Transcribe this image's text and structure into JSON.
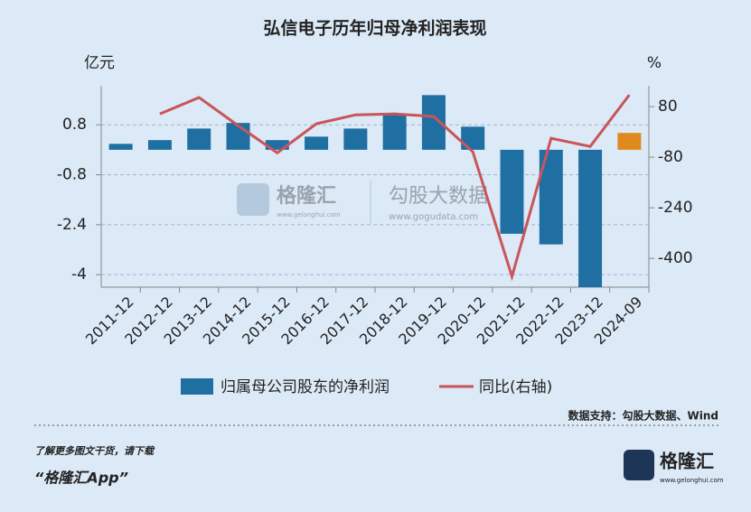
{
  "chart_data": {
    "type": "bar_line",
    "title": "弘信电子历年归母净利润表现",
    "ylabel": "亿元",
    "y2label": "%",
    "categories": [
      "2011-12",
      "2012-12",
      "2013-12",
      "2014-12",
      "2015-12",
      "2016-12",
      "2017-12",
      "2018-12",
      "2019-12",
      "2020-12",
      "2021-12",
      "2022-12",
      "2023-12",
      "2024-09"
    ],
    "series": [
      {
        "name": "归属母公司股东的净利润",
        "type": "bar",
        "color": "#1f6fa3",
        "colors": [
          "#1f6fa3",
          "#1f6fa3",
          "#1f6fa3",
          "#1f6fa3",
          "#1f6fa3",
          "#1f6fa3",
          "#1f6fa3",
          "#1f6fa3",
          "#1f6fa3",
          "#1f6fa3",
          "#1f6fa3",
          "#1f6fa3",
          "#1f6fa3",
          "#e08a1e"
        ],
        "values": [
          0.19,
          0.31,
          0.68,
          0.86,
          0.31,
          0.42,
          0.68,
          1.12,
          1.75,
          0.74,
          -2.69,
          -3.03,
          -4.4,
          0.54
        ]
      },
      {
        "name": "同比(右轴)",
        "type": "line",
        "axis": "y2",
        "color": "#c9555a",
        "values": [
          null,
          57,
          109,
          20,
          -66,
          26,
          54,
          57,
          49,
          -63,
          -457,
          -20,
          -46,
          117
        ]
      }
    ],
    "ylim": [
      -4.4,
      2.05
    ],
    "yticks": [
      0.8,
      -0.8,
      -2.4,
      -4
    ],
    "y2lim": [
      -491,
      146
    ],
    "y2ticks": [
      80,
      -80,
      -240,
      -400
    ],
    "grid": true
  },
  "watermark": {
    "left": "格隆汇",
    "left_url": "www.gelonghui.com",
    "right": "勾股大数据",
    "right_url": "www.gogudata.com"
  },
  "source": "数据支持：勾股大数据、Wind",
  "footer": {
    "line1": "了解更多图文干货，请下载",
    "line2": "“格隆汇App”",
    "logo": "格隆汇",
    "logo_url": "www.gelonghui.com"
  }
}
